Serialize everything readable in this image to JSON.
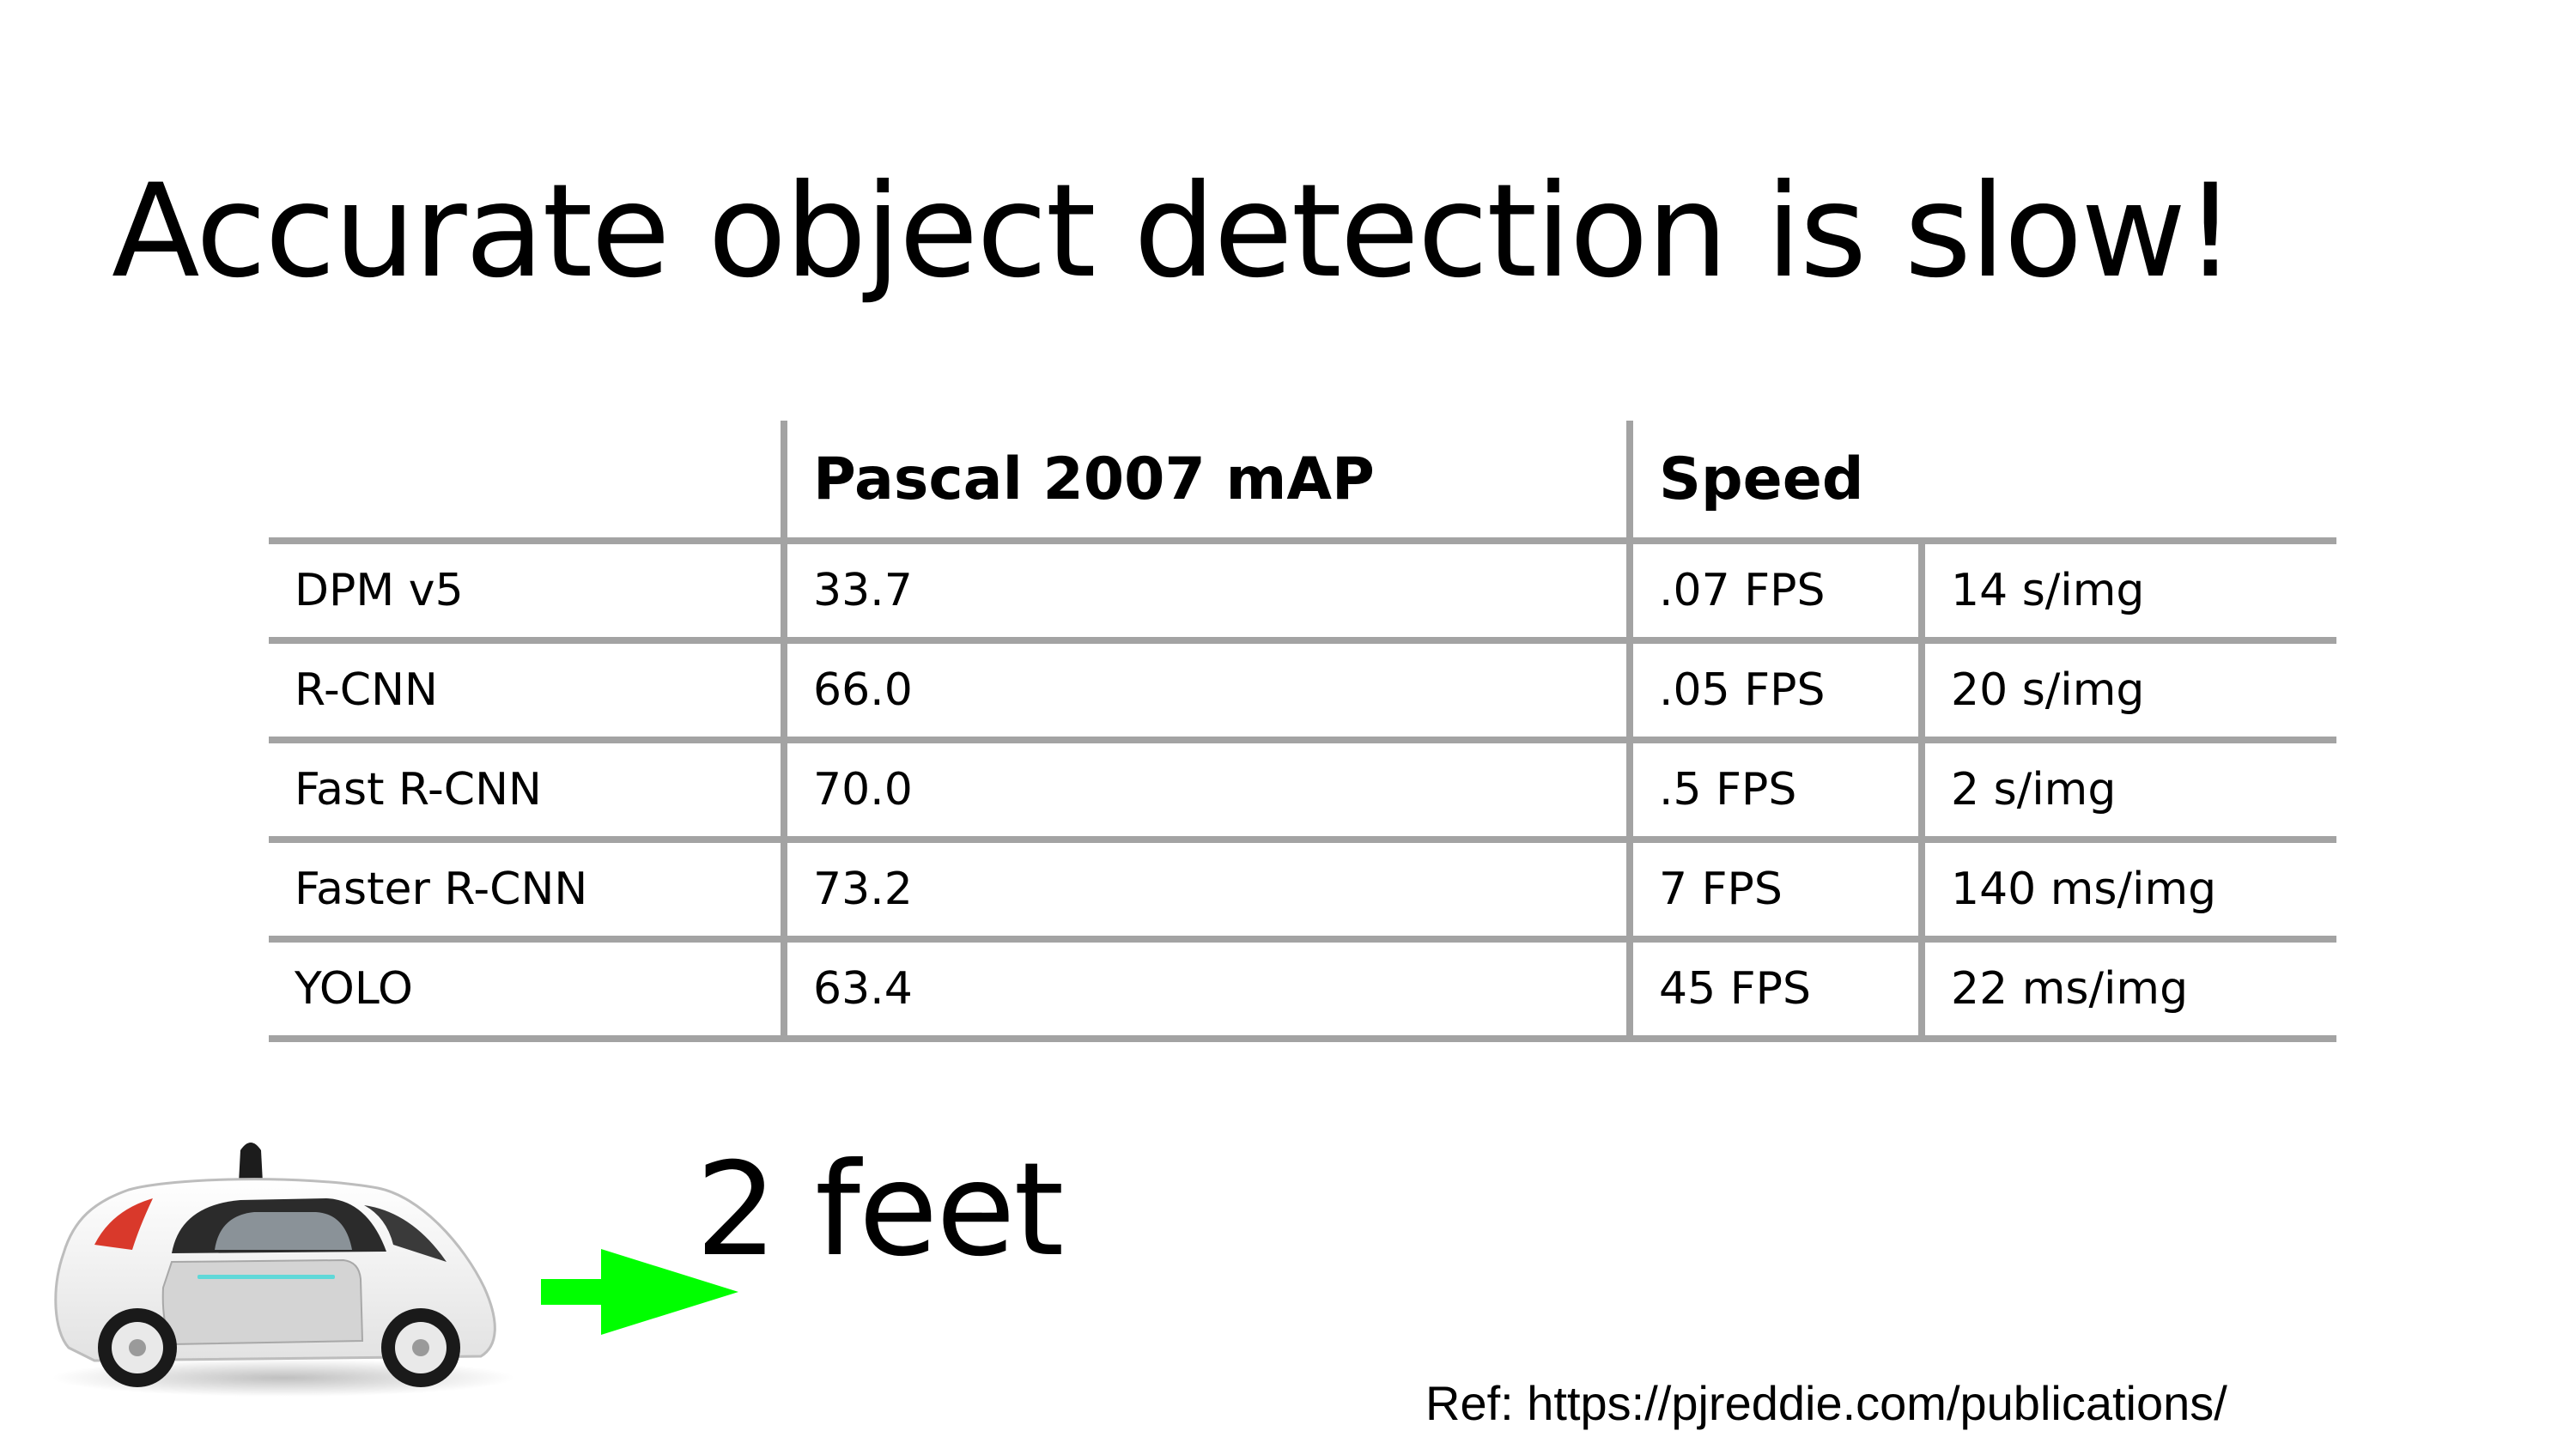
{
  "slide": {
    "title": "Accurate object detection is slow!",
    "distance_label": "2 feet",
    "reference": "Ref: https://pjreddie.com/publications/"
  },
  "table": {
    "headers": {
      "model": "",
      "map": "Pascal 2007 mAP",
      "speed": "Speed"
    },
    "rows": [
      {
        "model": "DPM v5",
        "map": "33.7",
        "fps": ".07 FPS",
        "time": "14 s/img"
      },
      {
        "model": "R-CNN",
        "map": "66.0",
        "fps": ".05 FPS",
        "time": "20 s/img"
      },
      {
        "model": "Fast R-CNN",
        "map": "70.0",
        "fps": ".5 FPS",
        "time": "2 s/img"
      },
      {
        "model": "Faster R-CNN",
        "map": "73.2",
        "fps": "7 FPS",
        "time": "140 ms/img"
      },
      {
        "model": "YOLO",
        "map": "63.4",
        "fps": "45 FPS",
        "time": "22 ms/img"
      }
    ]
  },
  "colors": {
    "rule": "#a3a3a3",
    "arrow": "#00ff00",
    "car_body": "#f2f2f2",
    "car_door": "#d4d4d4",
    "car_light": "#d9392b",
    "sensor_strip": "#5fd8d8"
  },
  "icons": {
    "vehicle": "self-driving-car-icon",
    "pointer": "right-arrow-icon"
  }
}
